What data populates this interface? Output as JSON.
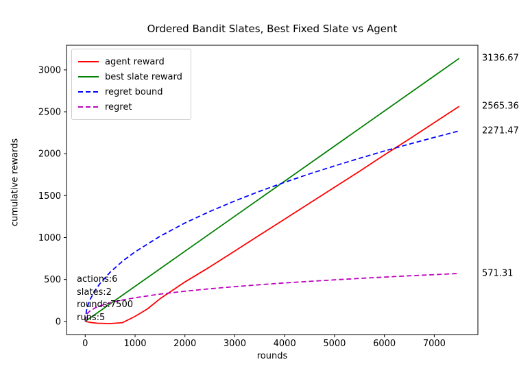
{
  "figure": {
    "title": "Ordered Bandit Slates, Best Fixed Slate vs Agent"
  },
  "chart_data": {
    "type": "line",
    "title": "Ordered Bandit Slates, Best Fixed Slate vs Agent",
    "xlabel": "rounds",
    "ylabel": "cumulative rewards",
    "grid": false,
    "legend_position": "upper left",
    "xlim": [
      -375,
      7875
    ],
    "ylim": [
      -157,
      3293.5
    ],
    "x_ticks": [
      0,
      1000,
      2000,
      3000,
      4000,
      5000,
      6000,
      7000
    ],
    "y_ticks": [
      0,
      500,
      1000,
      1500,
      2000,
      2500,
      3000
    ],
    "series": [
      {
        "name": "agent reward",
        "color": "#ff0000",
        "style": "solid",
        "final_value": 2565.36,
        "x": [
          0,
          100,
          250,
          500,
          750,
          1000,
          1250,
          1500,
          2000,
          2500,
          3000,
          3500,
          4000,
          4500,
          5000,
          5500,
          6000,
          6500,
          7000,
          7500
        ],
        "y": [
          0,
          -12,
          -22,
          -26,
          -15,
          60,
          150,
          270,
          470,
          650,
          840,
          1030,
          1220,
          1410,
          1600,
          1790,
          1985,
          2175,
          2370,
          2565.36
        ]
      },
      {
        "name": "best slate reward",
        "color": "#008000",
        "style": "solid",
        "final_value": 3136.67,
        "x": [
          0,
          7500
        ],
        "y": [
          0,
          3136.67
        ]
      },
      {
        "name": "regret bound",
        "color": "#0000ff",
        "style": "dashed",
        "final_value": 2271.47,
        "x": [
          0,
          25,
          50,
          100,
          200,
          300,
          500,
          750,
          1000,
          1500,
          2000,
          2500,
          3000,
          3500,
          4000,
          4500,
          5000,
          5500,
          6000,
          6500,
          7000,
          7500
        ],
        "y": [
          0,
          131.1,
          185.5,
          262.3,
          370.9,
          454.3,
          586.5,
          718.3,
          829.4,
          1015.8,
          1173.0,
          1311.4,
          1436.6,
          1551.7,
          1658.9,
          1759.5,
          1854.7,
          1945.2,
          2031.7,
          2114.7,
          2194.5,
          2271.47
        ]
      },
      {
        "name": "regret",
        "color": "#bf00bf",
        "style": "dashed",
        "final_value": 571.31,
        "x": [
          0,
          25,
          50,
          100,
          200,
          300,
          500,
          750,
          1000,
          1500,
          2000,
          2500,
          3000,
          3500,
          4000,
          4500,
          5000,
          5500,
          6000,
          6500,
          7000,
          7500
        ],
        "y": [
          0,
          77.6,
          98.9,
          126.0,
          160.7,
          185.2,
          221.4,
          255.1,
          282.2,
          325.2,
          359.7,
          388.9,
          414.6,
          437.6,
          458.5,
          477.8,
          495.7,
          512.5,
          528.4,
          543.4,
          557.7,
          571.31
        ]
      }
    ],
    "end_value_labels": [
      {
        "text": "3136.67",
        "value": 3136.67
      },
      {
        "text": "2565.36",
        "value": 2565.36
      },
      {
        "text": "2271.47",
        "value": 2271.47
      },
      {
        "text": "571.31",
        "value": 571.31
      }
    ],
    "params_annotation": [
      "actions:6",
      "slates:2",
      "rounds:7500",
      "runs:5"
    ]
  }
}
